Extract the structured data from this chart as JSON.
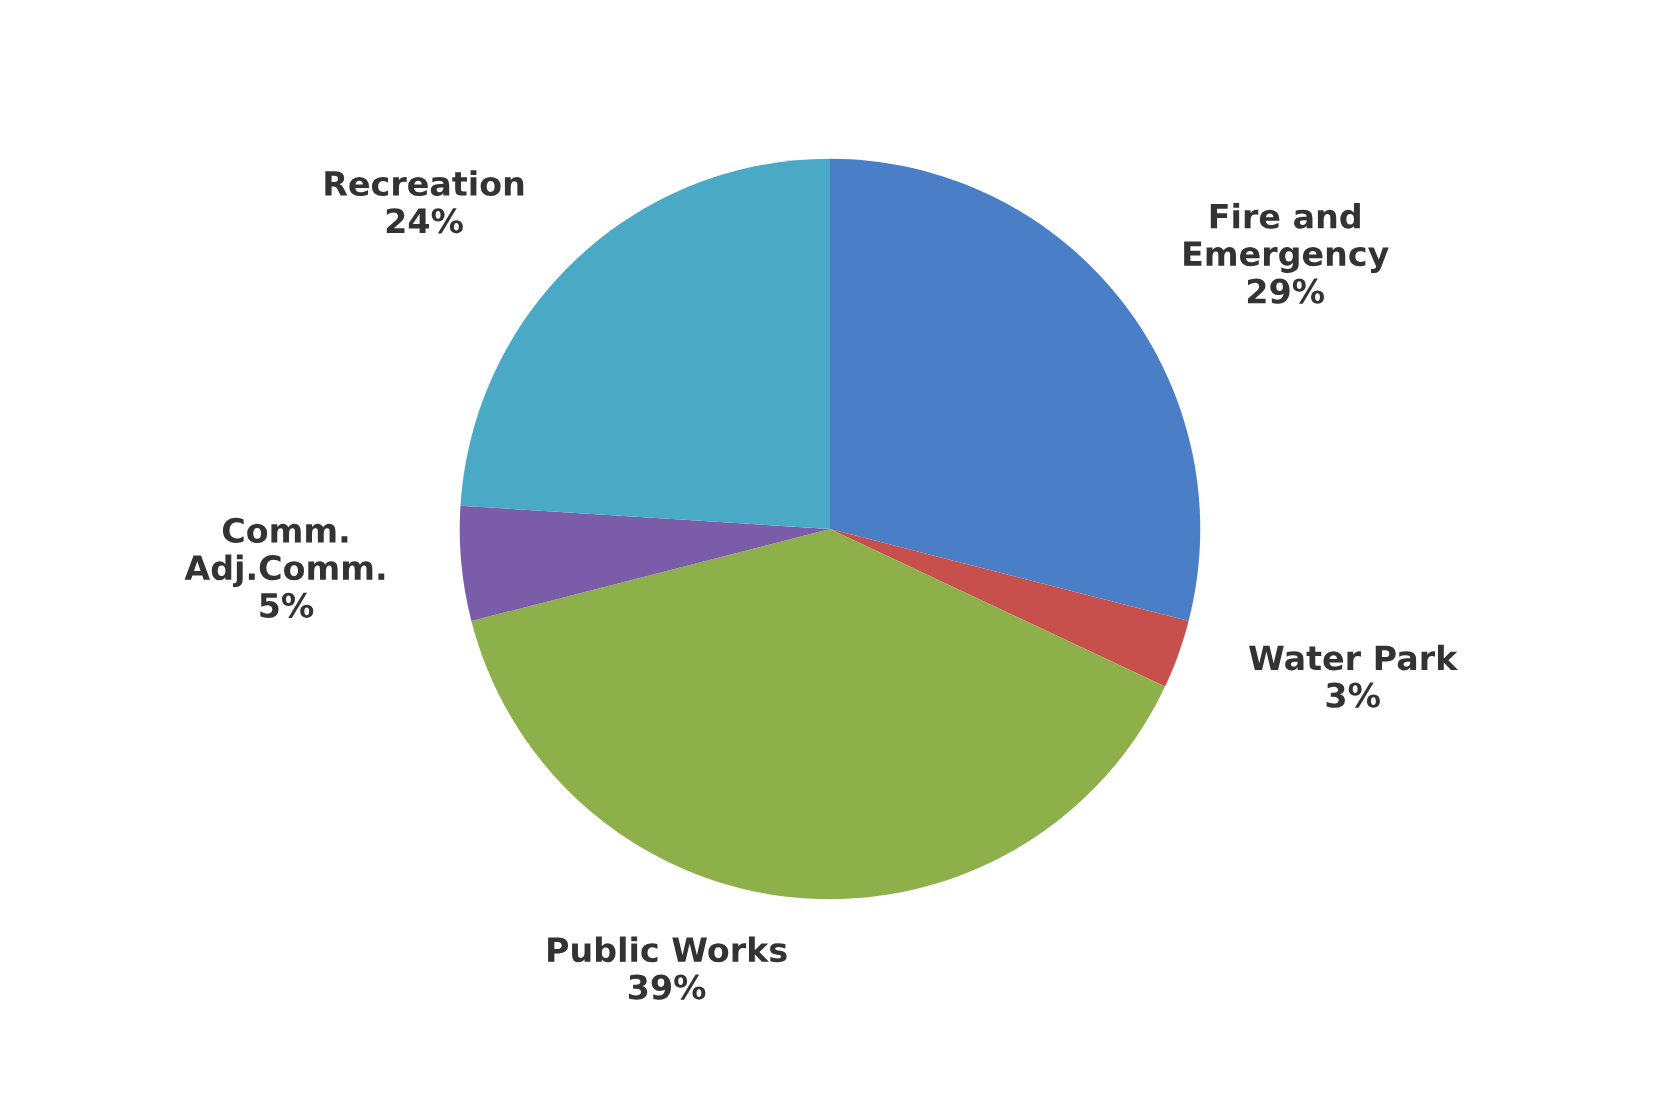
{
  "chart_data": {
    "type": "pie",
    "categories": [
      "Fire and\nEmergency",
      "Water Park",
      "Public Works",
      "Comm.\nAdj.Comm.",
      "Recreation"
    ],
    "values": [
      29,
      3,
      39,
      5,
      24
    ],
    "value_labels": [
      "29%",
      "3%",
      "39%",
      "5%",
      "24%"
    ],
    "colors": [
      "#4a7fc8",
      "#c8504c",
      "#8db04a",
      "#7a5ca8",
      "#4aa9c4"
    ]
  }
}
